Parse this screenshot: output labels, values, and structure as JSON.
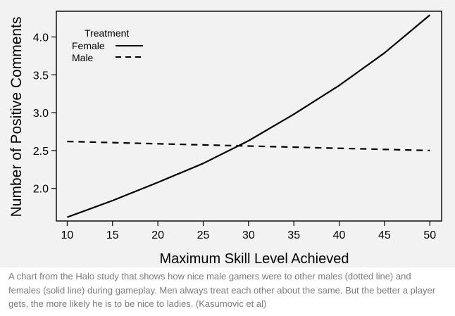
{
  "chart_data": {
    "type": "line",
    "ylabel": "Number of Positive Comments",
    "xlabel": "Maximum Skill Level Achieved",
    "xlim": [
      8.8,
      51.3
    ],
    "ylim": [
      1.57,
      4.34
    ],
    "x_ticks": [
      10,
      15,
      20,
      25,
      30,
      35,
      40,
      45,
      50
    ],
    "x_tick_labels": [
      "10",
      "15",
      "20",
      "25",
      "30",
      "35",
      "40",
      "45",
      "50"
    ],
    "y_ticks": [
      2.0,
      2.5,
      3.0,
      3.5,
      4.0
    ],
    "y_tick_labels": [
      "2.0",
      "2.5",
      "3.0",
      "3.5",
      "4.0"
    ],
    "grid": false,
    "legend": {
      "title": "Treatment",
      "position": "top-left"
    },
    "series": [
      {
        "name": "Female",
        "style": "solid",
        "color": "#000000",
        "x": [
          10,
          15,
          20,
          25,
          30,
          35,
          40,
          45,
          50
        ],
        "y": [
          1.62,
          1.84,
          2.08,
          2.33,
          2.63,
          2.98,
          3.36,
          3.79,
          4.29
        ]
      },
      {
        "name": "Male",
        "style": "dashed",
        "color": "#000000",
        "x": [
          10,
          20,
          30,
          40,
          50
        ],
        "y": [
          2.62,
          2.59,
          2.56,
          2.53,
          2.5
        ]
      }
    ]
  },
  "caption": "A chart from the Halo study that shows how nice male gamers were to other males (dotted line) and females (solid line) during gameplay. Men always treat each other about the same. But the better a player gets, the more likely he is to be nice to ladies. (Kasumovic et al)"
}
